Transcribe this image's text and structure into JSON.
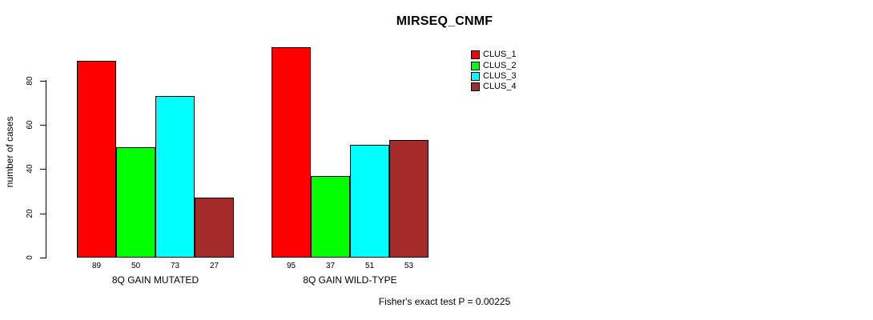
{
  "chart_data": {
    "type": "bar",
    "title": "MIRSEQ_CNMF",
    "ylabel": "number of cases",
    "xlabel": "",
    "yticks": [
      0,
      20,
      40,
      60,
      80
    ],
    "ylim": [
      0,
      95
    ],
    "grid": false,
    "legend_position": "top-right",
    "categories": [
      "8Q GAIN MUTATED",
      "8Q GAIN WILD-TYPE"
    ],
    "series": [
      {
        "name": "CLUS_1",
        "color": "#FF0000",
        "values": [
          89,
          95
        ]
      },
      {
        "name": "CLUS_2",
        "color": "#00FF00",
        "values": [
          50,
          37
        ]
      },
      {
        "name": "CLUS_3",
        "color": "#00FFFF",
        "values": [
          73,
          51
        ]
      },
      {
        "name": "CLUS_4",
        "color": "#A52A2A",
        "values": [
          27,
          53
        ]
      }
    ],
    "groups": [
      {
        "label": "8Q GAIN MUTATED",
        "values": [
          89,
          50,
          73,
          27
        ]
      },
      {
        "label": "8Q GAIN WILD-TYPE",
        "values": [
          95,
          37,
          51,
          53
        ]
      }
    ],
    "bar_value_labels_shown": true,
    "annotation": "Fisher's exact test P = 0.00225"
  }
}
